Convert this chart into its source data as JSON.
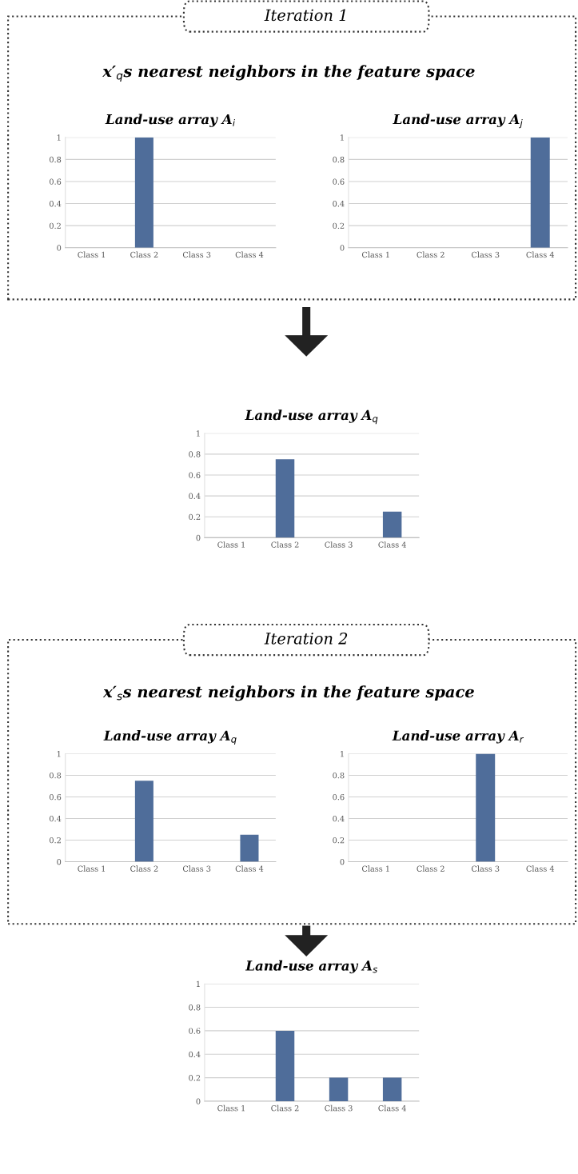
{
  "chart_data": [
    {
      "type": "bar",
      "title": "Land-use array A$_{i}$",
      "annotations": [
        "Iteration 1",
        "x′$_{q}$s nearest neighbors in the feature space"
      ],
      "categories": [
        "Class 1",
        "Class 2",
        "Class 3",
        "Class 4"
      ],
      "values": [
        0,
        1,
        0,
        0
      ],
      "color": "#4f6d9a",
      "ylim": [
        0,
        1
      ],
      "yticks": [
        0,
        0.2,
        0.4,
        0.6,
        0.8,
        1
      ],
      "grid": "y"
    },
    {
      "type": "bar",
      "title": "Land-use array A$_{j}$",
      "categories": [
        "Class 1",
        "Class 2",
        "Class 3",
        "Class 4"
      ],
      "values": [
        0,
        0,
        0,
        1
      ],
      "color": "#4f6d9a",
      "ylim": [
        0,
        1
      ],
      "yticks": [
        0,
        0.2,
        0.4,
        0.6,
        0.8,
        1
      ],
      "grid": "y"
    },
    {
      "type": "bar",
      "title": "Land-use array A$_{q}$",
      "categories": [
        "Class 1",
        "Class 2",
        "Class 3",
        "Class 4"
      ],
      "values": [
        0,
        0.75,
        0,
        0.25
      ],
      "color": "#4f6d9a",
      "ylim": [
        0,
        1
      ],
      "yticks": [
        0,
        0.2,
        0.4,
        0.6,
        0.8,
        1
      ],
      "grid": "y"
    },
    {
      "type": "bar",
      "title": "Land-use array A$_{q}$",
      "annotations": [
        "Iteration 2",
        "x′$_{s}$s nearest neighbors in the feature space"
      ],
      "categories": [
        "Class 1",
        "Class 2",
        "Class 3",
        "Class 4"
      ],
      "values": [
        0,
        0.75,
        0,
        0.25
      ],
      "color": "#4f6d9a",
      "ylim": [
        0,
        1
      ],
      "yticks": [
        0,
        0.2,
        0.4,
        0.6,
        0.8,
        1
      ],
      "grid": "y"
    },
    {
      "type": "bar",
      "title": "Land-use array A$_{r}$",
      "categories": [
        "Class 1",
        "Class 2",
        "Class 3",
        "Class 4"
      ],
      "values": [
        0,
        0,
        1,
        0
      ],
      "color": "#4f6d9a",
      "ylim": [
        0,
        1
      ],
      "yticks": [
        0,
        0.2,
        0.4,
        0.6,
        0.8,
        1
      ],
      "grid": "y"
    },
    {
      "type": "bar",
      "title": "Land-use array A$_{s}$",
      "categories": [
        "Class 1",
        "Class 2",
        "Class 3",
        "Class 4"
      ],
      "values": [
        0,
        0.6,
        0.2,
        0.2
      ],
      "color": "#4f6d9a",
      "ylim": [
        0,
        1
      ],
      "yticks": [
        0,
        0.2,
        0.4,
        0.6,
        0.8,
        1
      ],
      "grid": "y"
    }
  ]
}
